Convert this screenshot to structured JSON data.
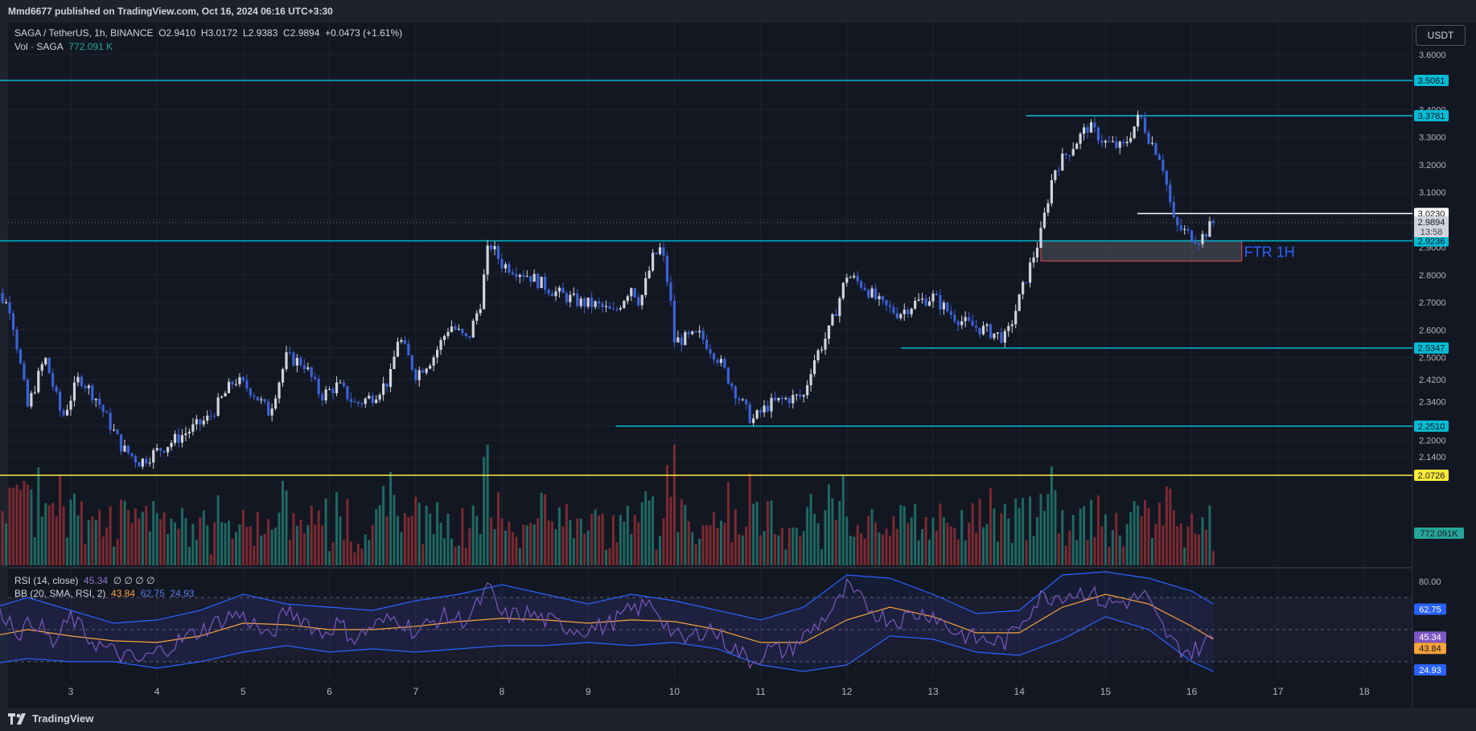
{
  "header": {
    "published": "Mmd6677 published on TradingView.com, Oct 16, 2024 06:16 UTC+3:30"
  },
  "brand": {
    "name": "TradingView",
    "icon": "tradingview-logo-icon"
  },
  "currency_button": "USDT",
  "legend": {
    "symbol": "SAGA / TetherUS, 1h, BINANCE",
    "open": "O2.9410",
    "high": "H3.0172",
    "low": "L2.9383",
    "close": "C2.9894",
    "change": "+0.0473 (+1.61%)",
    "vol_label": "Vol · SAGA",
    "vol_value": "772.091 K",
    "rsi_label": "RSI (14, close)",
    "rsi_value": "45.34",
    "rsi_extra": "∅ ∅ ∅ ∅",
    "bb_label": "BB (20, SMA, RSI, 2)",
    "bb_basis": "43.84",
    "bb_upper": "62.75",
    "bb_lower": "24.93"
  },
  "chart_data": {
    "type": "candlestick",
    "price_axis": {
      "min": 2.07,
      "max": 3.62,
      "ticks": [
        2.0726,
        2.14,
        2.2,
        2.251,
        2.34,
        2.42,
        2.5,
        2.5347,
        2.6,
        2.7,
        2.8,
        2.9,
        3.0,
        3.1,
        3.2,
        3.3,
        3.4,
        3.5,
        3.6
      ]
    },
    "x_axis": {
      "ticks": [
        "3",
        "4",
        "5",
        "6",
        "7",
        "8",
        "9",
        "10",
        "11",
        "12",
        "13",
        "14",
        "15",
        "16",
        "17",
        "18"
      ]
    },
    "close_path": [
      [
        2.0,
        2.55
      ],
      [
        2.1,
        2.75
      ],
      [
        2.3,
        2.68
      ],
      [
        2.5,
        2.32
      ],
      [
        2.7,
        2.5
      ],
      [
        2.9,
        2.28
      ],
      [
        3.1,
        2.43
      ],
      [
        3.3,
        2.35
      ],
      [
        3.6,
        2.17
      ],
      [
        3.8,
        2.12
      ],
      [
        4.0,
        2.16
      ],
      [
        4.3,
        2.22
      ],
      [
        4.6,
        2.28
      ],
      [
        4.9,
        2.42
      ],
      [
        5.1,
        2.38
      ],
      [
        5.3,
        2.3
      ],
      [
        5.5,
        2.5
      ],
      [
        5.7,
        2.48
      ],
      [
        5.9,
        2.36
      ],
      [
        6.1,
        2.4
      ],
      [
        6.3,
        2.33
      ],
      [
        6.5,
        2.36
      ],
      [
        6.7,
        2.42
      ],
      [
        6.8,
        2.58
      ],
      [
        7.0,
        2.44
      ],
      [
        7.2,
        2.5
      ],
      [
        7.4,
        2.62
      ],
      [
        7.6,
        2.56
      ],
      [
        7.75,
        2.7
      ],
      [
        7.85,
        2.92
      ],
      [
        8.0,
        2.84
      ],
      [
        8.3,
        2.8
      ],
      [
        8.6,
        2.74
      ],
      [
        8.9,
        2.7
      ],
      [
        9.1,
        2.69
      ],
      [
        9.3,
        2.66
      ],
      [
        9.5,
        2.76
      ],
      [
        9.6,
        2.7
      ],
      [
        9.75,
        2.86
      ],
      [
        9.85,
        2.9
      ],
      [
        9.95,
        2.72
      ],
      [
        10.0,
        2.56
      ],
      [
        10.3,
        2.58
      ],
      [
        10.5,
        2.5
      ],
      [
        10.7,
        2.38
      ],
      [
        10.9,
        2.27
      ],
      [
        11.1,
        2.33
      ],
      [
        11.3,
        2.35
      ],
      [
        11.5,
        2.36
      ],
      [
        11.6,
        2.48
      ],
      [
        11.8,
        2.6
      ],
      [
        12.0,
        2.8
      ],
      [
        12.2,
        2.76
      ],
      [
        12.4,
        2.69
      ],
      [
        12.6,
        2.66
      ],
      [
        12.8,
        2.7
      ],
      [
        13.0,
        2.72
      ],
      [
        13.2,
        2.66
      ],
      [
        13.4,
        2.62
      ],
      [
        13.6,
        2.6
      ],
      [
        13.85,
        2.57
      ],
      [
        14.05,
        2.76
      ],
      [
        14.25,
        2.95
      ],
      [
        14.4,
        3.18
      ],
      [
        14.6,
        3.26
      ],
      [
        14.8,
        3.34
      ],
      [
        15.0,
        3.28
      ],
      [
        15.2,
        3.26
      ],
      [
        15.4,
        3.38
      ],
      [
        15.5,
        3.3
      ],
      [
        15.65,
        3.22
      ],
      [
        15.8,
        2.98
      ],
      [
        16.0,
        2.94
      ],
      [
        16.1,
        2.93
      ],
      [
        16.25,
        2.99
      ]
    ],
    "current_price": 2.9894,
    "countdown": "13:58",
    "levels": [
      {
        "price": 3.5061,
        "label": "3.5061",
        "color": "#00bcd4",
        "from_day": 2.0
      },
      {
        "price": 3.3781,
        "label": "3.3781",
        "color": "#00bcd4",
        "from_day": 14.08
      },
      {
        "price": 3.023,
        "label": "3.0230",
        "color": "#ffffff",
        "from_day": 15.37
      },
      {
        "price": 2.9236,
        "label": "2.9236",
        "color": "#00bcd4",
        "from_day": 2.0
      },
      {
        "price": 2.5347,
        "label": "2.5347",
        "color": "#00bcd4",
        "from_day": 12.63
      },
      {
        "price": 2.251,
        "label": "2.2510",
        "color": "#00bcd4",
        "from_day": 9.32
      },
      {
        "price": 2.0726,
        "label": "2.0726",
        "color": "#ffeb3b",
        "from_day": 2.0
      }
    ],
    "zone": {
      "label": "FTR 1H",
      "top": 2.9236,
      "bottom": 2.85,
      "from_day": 14.25,
      "to_day": 16.58
    },
    "volume_label": "772.091K",
    "rsi": {
      "axis_ticks": [
        80.0,
        62.75,
        45.34,
        43.84,
        24.93
      ],
      "upper_band": 70,
      "lower_band": 30,
      "mid": 50,
      "rsi_path": [
        [
          2.0,
          50
        ],
        [
          2.2,
          62
        ],
        [
          2.4,
          48
        ],
        [
          2.6,
          56
        ],
        [
          2.8,
          40
        ],
        [
          3.0,
          58
        ],
        [
          3.2,
          45
        ],
        [
          3.4,
          38
        ],
        [
          3.6,
          34
        ],
        [
          3.8,
          30
        ],
        [
          4.0,
          36
        ],
        [
          4.3,
          44
        ],
        [
          4.6,
          52
        ],
        [
          4.9,
          60
        ],
        [
          5.1,
          55
        ],
        [
          5.3,
          44
        ],
        [
          5.5,
          62
        ],
        [
          5.7,
          57
        ],
        [
          5.9,
          47
        ],
        [
          6.1,
          54
        ],
        [
          6.3,
          44
        ],
        [
          6.5,
          52
        ],
        [
          6.8,
          58
        ],
        [
          7.0,
          48
        ],
        [
          7.3,
          58
        ],
        [
          7.6,
          56
        ],
        [
          7.85,
          76
        ],
        [
          8.0,
          58
        ],
        [
          8.3,
          60
        ],
        [
          8.6,
          54
        ],
        [
          8.9,
          50
        ],
        [
          9.2,
          52
        ],
        [
          9.5,
          62
        ],
        [
          9.75,
          66
        ],
        [
          9.95,
          50
        ],
        [
          10.1,
          42
        ],
        [
          10.4,
          52
        ],
        [
          10.6,
          42
        ],
        [
          10.9,
          30
        ],
        [
          11.1,
          38
        ],
        [
          11.3,
          36
        ],
        [
          11.6,
          50
        ],
        [
          11.9,
          66
        ],
        [
          12.0,
          76
        ],
        [
          12.2,
          66
        ],
        [
          12.4,
          58
        ],
        [
          12.6,
          56
        ],
        [
          12.8,
          60
        ],
        [
          13.0,
          60
        ],
        [
          13.2,
          50
        ],
        [
          13.5,
          44
        ],
        [
          13.85,
          42
        ],
        [
          14.05,
          58
        ],
        [
          14.25,
          70
        ],
        [
          14.5,
          72
        ],
        [
          14.8,
          74
        ],
        [
          15.0,
          66
        ],
        [
          15.3,
          68
        ],
        [
          15.45,
          72
        ],
        [
          15.6,
          56
        ],
        [
          15.8,
          40
        ],
        [
          16.0,
          36
        ],
        [
          16.25,
          45
        ]
      ],
      "bb_basis_path": [
        [
          2.0,
          45
        ],
        [
          2.5,
          50
        ],
        [
          3.0,
          46
        ],
        [
          3.5,
          43
        ],
        [
          4.0,
          42
        ],
        [
          4.5,
          46
        ],
        [
          5.0,
          54
        ],
        [
          5.5,
          53
        ],
        [
          6.0,
          50
        ],
        [
          6.5,
          50
        ],
        [
          7.0,
          52
        ],
        [
          7.5,
          55
        ],
        [
          8.0,
          57
        ],
        [
          8.5,
          56
        ],
        [
          9.0,
          54
        ],
        [
          9.5,
          56
        ],
        [
          10.0,
          55
        ],
        [
          10.5,
          50
        ],
        [
          11.0,
          42
        ],
        [
          11.5,
          42
        ],
        [
          12.0,
          56
        ],
        [
          12.5,
          64
        ],
        [
          13.0,
          58
        ],
        [
          13.5,
          48
        ],
        [
          14.0,
          48
        ],
        [
          14.5,
          64
        ],
        [
          15.0,
          72
        ],
        [
          15.5,
          66
        ],
        [
          16.0,
          52
        ],
        [
          16.25,
          44
        ]
      ],
      "bb_upper_path": [
        [
          2.0,
          62
        ],
        [
          2.5,
          70
        ],
        [
          3.0,
          62
        ],
        [
          3.5,
          54
        ],
        [
          4.0,
          56
        ],
        [
          4.5,
          62
        ],
        [
          5.0,
          72
        ],
        [
          5.5,
          66
        ],
        [
          6.0,
          64
        ],
        [
          6.5,
          62
        ],
        [
          7.0,
          68
        ],
        [
          7.5,
          72
        ],
        [
          8.0,
          78
        ],
        [
          8.5,
          72
        ],
        [
          9.0,
          66
        ],
        [
          9.5,
          72
        ],
        [
          10.0,
          68
        ],
        [
          10.5,
          62
        ],
        [
          11.0,
          56
        ],
        [
          11.5,
          64
        ],
        [
          12.0,
          84
        ],
        [
          12.5,
          82
        ],
        [
          13.0,
          72
        ],
        [
          13.5,
          60
        ],
        [
          14.0,
          62
        ],
        [
          14.5,
          84
        ],
        [
          15.0,
          86
        ],
        [
          15.5,
          82
        ],
        [
          16.0,
          74
        ],
        [
          16.25,
          66
        ]
      ],
      "bb_lower_path": [
        [
          2.0,
          28
        ],
        [
          2.5,
          32
        ],
        [
          3.0,
          30
        ],
        [
          3.5,
          30
        ],
        [
          4.0,
          26
        ],
        [
          4.5,
          30
        ],
        [
          5.0,
          36
        ],
        [
          5.5,
          40
        ],
        [
          6.0,
          36
        ],
        [
          6.5,
          38
        ],
        [
          7.0,
          36
        ],
        [
          7.5,
          38
        ],
        [
          8.0,
          40
        ],
        [
          8.5,
          40
        ],
        [
          9.0,
          42
        ],
        [
          9.5,
          40
        ],
        [
          10.0,
          42
        ],
        [
          10.5,
          38
        ],
        [
          11.0,
          28
        ],
        [
          11.5,
          24
        ],
        [
          12.0,
          28
        ],
        [
          12.5,
          46
        ],
        [
          13.0,
          44
        ],
        [
          13.5,
          36
        ],
        [
          14.0,
          34
        ],
        [
          14.5,
          44
        ],
        [
          15.0,
          58
        ],
        [
          15.5,
          50
        ],
        [
          16.0,
          30
        ],
        [
          16.25,
          24
        ]
      ]
    }
  }
}
